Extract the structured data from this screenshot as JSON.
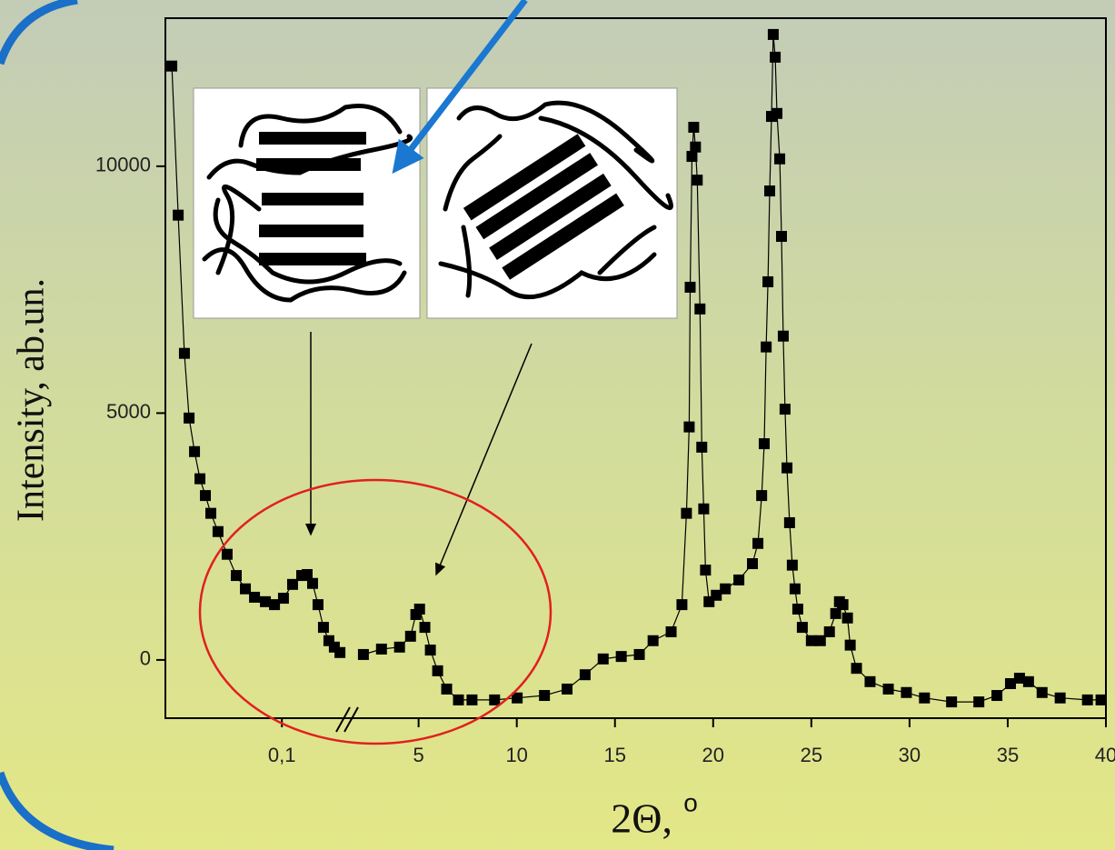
{
  "chart_data": [
    {
      "type": "line",
      "marker": "square",
      "color": "#000000",
      "ylabel": "Intensity, ab.un.",
      "ylim": [
        -1180,
        13000
      ],
      "yticks": [
        0,
        5000,
        10000
      ],
      "xlim": [
        0.04,
        0.135
      ],
      "xticks": [
        {
          "value": 0.1,
          "label": "0,1"
        }
      ],
      "x": [
        0.0433,
        0.0466,
        0.0498,
        0.0522,
        0.055,
        0.0578,
        0.0606,
        0.0634,
        0.0671,
        0.0718,
        0.0765,
        0.0812,
        0.0859,
        0.0915,
        0.0962,
        0.1008,
        0.1055,
        0.1102,
        0.113,
        0.1158,
        0.1186,
        0.1214,
        0.1242,
        0.127,
        0.1299
      ],
      "values": [
        12030,
        9010,
        6210,
        4900,
        4220,
        3670,
        3330,
        2970,
        2600,
        2140,
        1710,
        1440,
        1270,
        1180,
        1120,
        1250,
        1530,
        1710,
        1730,
        1550,
        1120,
        660,
        390,
        260,
        150
      ]
    },
    {
      "type": "line",
      "marker": "square",
      "color": "#000000",
      "xlabel": "2Θ,",
      "xlabel_unit": "o",
      "xlim": [
        1.5,
        40
      ],
      "xticks": [
        5,
        10,
        15,
        20,
        25,
        30,
        35,
        40
      ],
      "x": [
        2.19,
        3.11,
        4.03,
        4.59,
        4.86,
        5.05,
        5.32,
        5.6,
        5.97,
        6.43,
        7.03,
        7.72,
        8.87,
        10.02,
        11.41,
        12.56,
        13.48,
        14.4,
        15.32,
        16.24,
        16.94,
        17.86,
        18.41,
        18.64,
        18.78,
        18.83,
        18.92,
        19.01,
        19.1,
        19.19,
        19.33,
        19.42,
        19.52,
        19.61,
        19.79,
        20.16,
        20.62,
        21.31,
        22.0,
        22.28,
        22.47,
        22.6,
        22.7,
        22.79,
        22.88,
        22.97,
        23.06,
        23.16,
        23.25,
        23.39,
        23.48,
        23.57,
        23.66,
        23.76,
        23.89,
        24.03,
        24.17,
        24.31,
        24.54,
        25.0,
        25.46,
        25.92,
        26.24,
        26.43,
        26.61,
        26.84,
        26.98,
        27.3,
        27.99,
        28.92,
        29.84,
        30.76,
        32.14,
        33.53,
        34.45,
        35.14,
        35.6,
        36.06,
        36.75,
        37.67,
        39.06,
        39.75
      ],
      "values": [
        110,
        220,
        260,
        480,
        920,
        1030,
        660,
        200,
        -220,
        -590,
        -810,
        -810,
        -810,
        -770,
        -720,
        -590,
        -300,
        20,
        70,
        110,
        390,
        570,
        1120,
        2970,
        4720,
        7550,
        10200,
        10790,
        10390,
        9720,
        7110,
        4310,
        3060,
        1820,
        1180,
        1310,
        1440,
        1620,
        1950,
        2360,
        3330,
        4380,
        6340,
        7660,
        9500,
        11010,
        12670,
        12210,
        11070,
        10150,
        8580,
        6560,
        5080,
        3890,
        2780,
        1920,
        1440,
        1030,
        660,
        390,
        390,
        570,
        940,
        1180,
        1120,
        850,
        300,
        -170,
        -440,
        -590,
        -660,
        -770,
        -850,
        -850,
        -720,
        -480,
        -370,
        -440,
        -660,
        -770,
        -810,
        -810
      ]
    }
  ]
}
